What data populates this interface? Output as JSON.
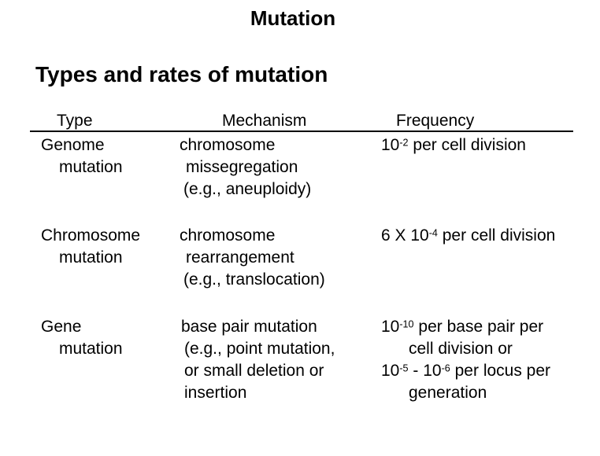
{
  "slide": {
    "title": "Mutation",
    "heading": "Types and rates of mutation"
  },
  "table": {
    "headers": {
      "type": "Type",
      "mechanism": "Mechanism",
      "frequency": "Frequency"
    },
    "rows": [
      {
        "type": [
          "Genome",
          "mutation"
        ],
        "mechanism": [
          "chromosome",
          "missegregation",
          "(e.g., aneuploidy)"
        ],
        "frequency": [
          "10^{-2} per cell division"
        ]
      },
      {
        "type": [
          "Chromosome",
          "mutation"
        ],
        "mechanism": [
          "chromosome",
          "rearrangement",
          "(e.g., translocation)"
        ],
        "frequency": [
          "6 X 10^{-4} per cell division"
        ]
      },
      {
        "type": [
          "Gene",
          "mutation"
        ],
        "mechanism": [
          "base pair mutation",
          "(e.g., point mutation,",
          "or small deletion or",
          "insertion"
        ],
        "frequency": [
          "10^{-10} per base pair per",
          "cell division or",
          "10^{-5} - 10^{-6} per locus per",
          "generation"
        ]
      }
    ]
  },
  "colors": {
    "text": "#000000",
    "background": "#ffffff",
    "rule": "#000000"
  }
}
